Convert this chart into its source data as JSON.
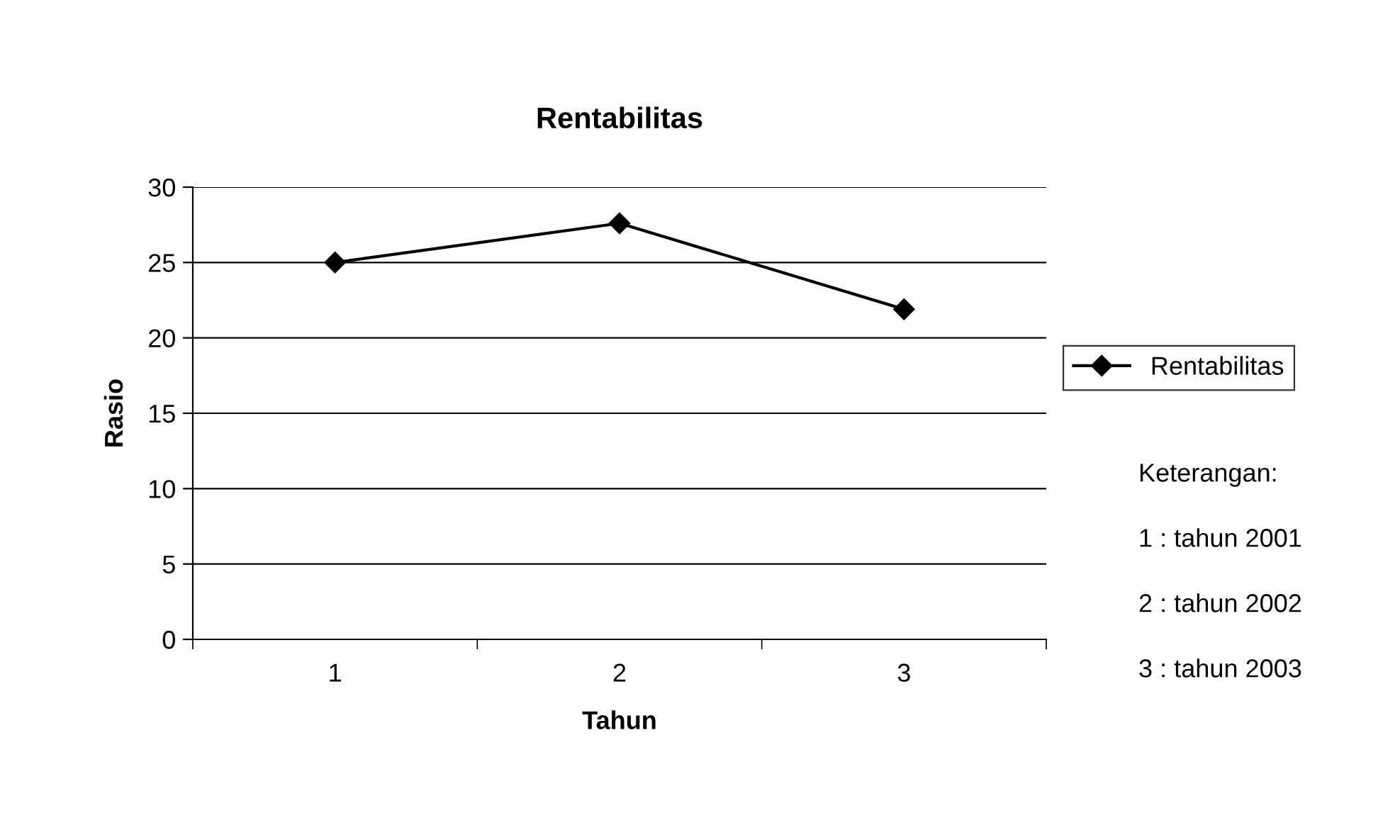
{
  "chart_data": {
    "type": "line",
    "title": "Rentabilitas",
    "xlabel": "Tahun",
    "ylabel": "Rasio",
    "categories": [
      "1",
      "2",
      "3"
    ],
    "series": [
      {
        "name": "Rentabilitas",
        "color": "#000000",
        "values": [
          25,
          27.6,
          21.9
        ]
      }
    ],
    "ylim": [
      0,
      30
    ],
    "yticks": [
      0,
      5,
      10,
      15,
      20,
      25,
      30
    ],
    "grid": "y",
    "legend": "right",
    "marker": "diamond",
    "line_style": "solid",
    "annotations": [
      "Keterangan:",
      "1 : tahun 2001",
      "2 : tahun 2002",
      "3 : tahun 2003"
    ]
  }
}
